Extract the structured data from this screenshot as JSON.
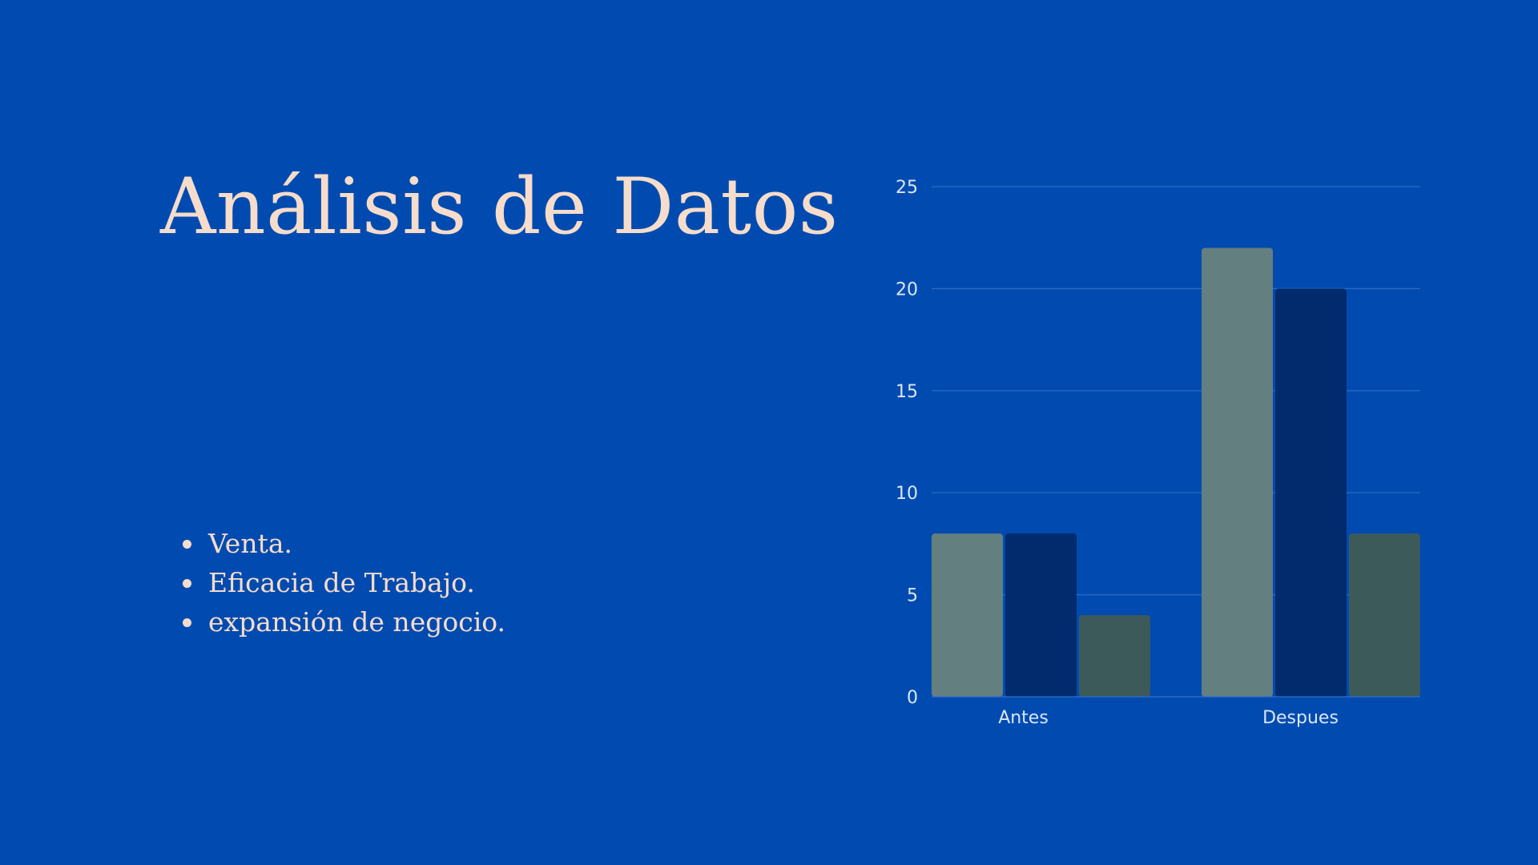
{
  "title": "Análisis de Datos",
  "bullets": [
    "Venta.",
    "Eficacia de Trabajo.",
    "expansión de negocio."
  ],
  "colors": {
    "background": "#014bb0",
    "text": "#f6dccb",
    "series": [
      "#637f80",
      "#012b6d",
      "#3d5a5b"
    ]
  },
  "chart_data": {
    "type": "bar",
    "categories": [
      "Antes",
      "Despues"
    ],
    "series": [
      {
        "values": [
          8,
          22
        ]
      },
      {
        "values": [
          8,
          20
        ]
      },
      {
        "values": [
          4,
          8
        ]
      }
    ],
    "ylim": [
      0,
      25
    ],
    "yticks": [
      0,
      5,
      10,
      15,
      20,
      25
    ],
    "grid": true,
    "title": "",
    "xlabel": "",
    "ylabel": ""
  }
}
